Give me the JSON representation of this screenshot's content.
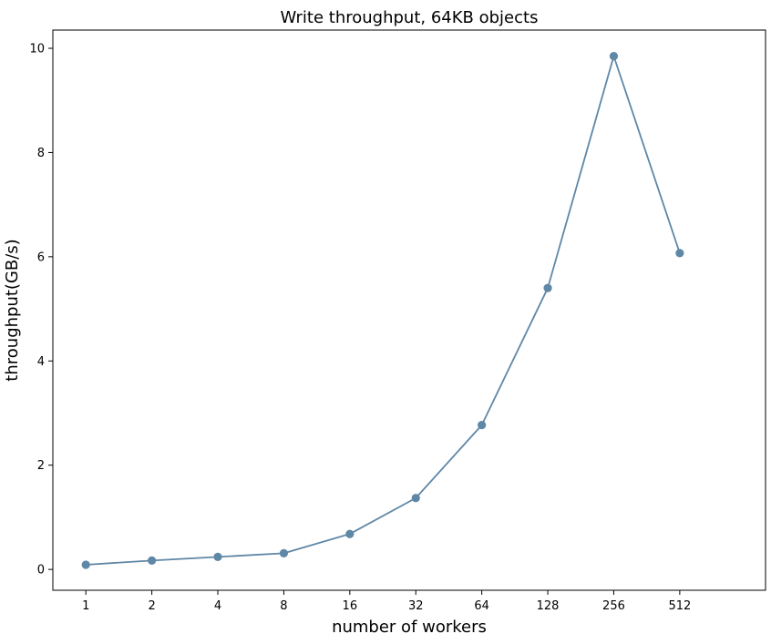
{
  "chart_data": {
    "type": "line",
    "title": "Write throughput, 64KB objects",
    "xlabel": "number of workers",
    "ylabel": "throughput(GB/s)",
    "categories": [
      "1",
      "2",
      "4",
      "8",
      "16",
      "32",
      "64",
      "128",
      "256",
      "512"
    ],
    "series": [
      {
        "values": [
          0.09,
          0.17,
          0.24,
          0.31,
          0.68,
          1.37,
          2.77,
          5.4,
          9.85,
          6.07
        ]
      }
    ],
    "ylim": [
      -0.4,
      10.35
    ],
    "yticks": [
      0,
      2,
      4,
      6,
      8,
      10
    ],
    "grid": false,
    "colors": {
      "line": "#5f87a6",
      "marker": "#5f87a6"
    }
  }
}
